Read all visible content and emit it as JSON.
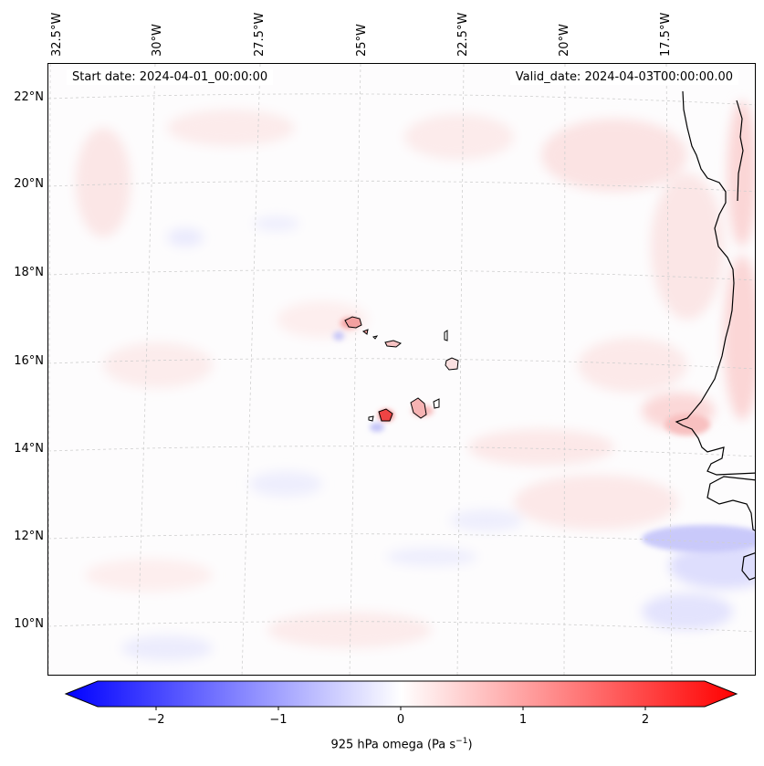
{
  "map": {
    "start_label": "Start date: 2024-04-01_00:00:00",
    "valid_label": "Valid_date: 2024-04-03T00:00:00.00",
    "lon_ticks": [
      "32.5°W",
      "30°W",
      "27.5°W",
      "25°W",
      "22.5°W",
      "20°W",
      "17.5°W"
    ],
    "lat_ticks": [
      "22°N",
      "20°N",
      "18°N",
      "16°N",
      "14°N",
      "12°N",
      "10°N"
    ],
    "region": "Cape Verde islands and West African coast"
  },
  "colorbar": {
    "ticks": [
      "−2",
      "−1",
      "0",
      "1",
      "2"
    ],
    "title": "925 hPa omega (Pa s",
    "unit_exp": "−1",
    "title_end": ")",
    "range": [
      -2.6,
      2.6
    ],
    "colors": {
      "neg": "#0000ff",
      "mid": "#ffffff",
      "pos": "#ff0000"
    }
  }
}
